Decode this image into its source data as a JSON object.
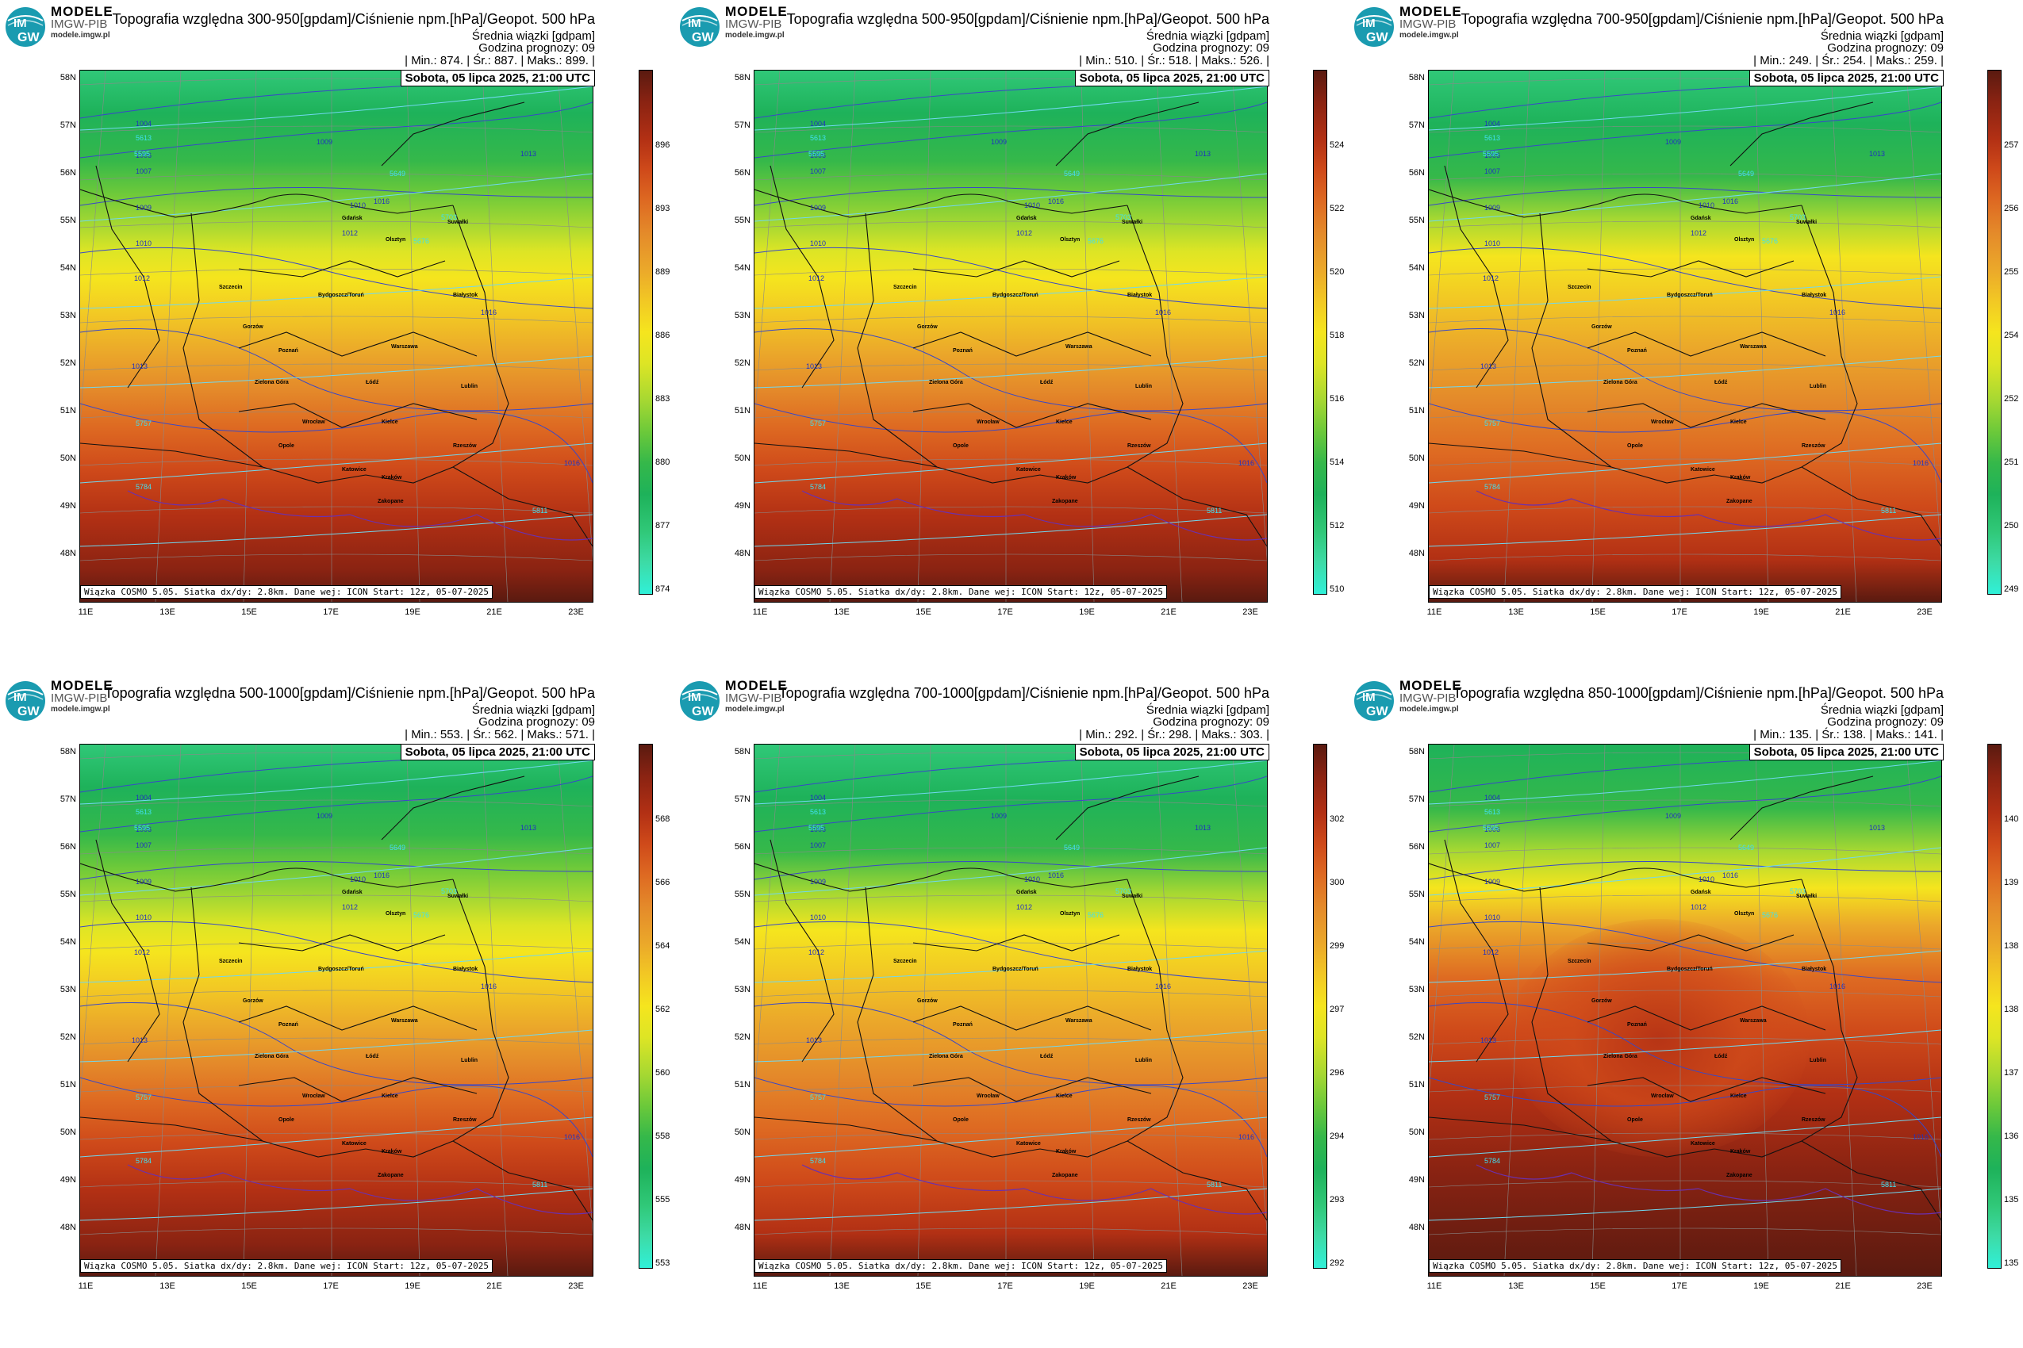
{
  "brand": {
    "line1": "MODELE",
    "line2": "IMGW-PIB",
    "line3": "modele.imgw.pl",
    "logo_text_top": "IM",
    "logo_text_bottom": "GW"
  },
  "common": {
    "subtitle": "Średnia wiązki [gdpam]",
    "forecast_hour": "Godzina prognozy: 09",
    "valid_time": "Sobota, 05 lipca 2025, 21:00 UTC",
    "credit": "Wiązka COSMO 5.05. Siatka dx/dy: 2.8km. Dane wej: ICON Start: 12z, 05-07-2025",
    "lat_labels": [
      "58N",
      "57N",
      "56N",
      "55N",
      "54N",
      "53N",
      "52N",
      "51N",
      "50N",
      "49N",
      "48N"
    ],
    "lon_labels": [
      "11E",
      "13E",
      "15E",
      "17E",
      "19E",
      "21E",
      "23E"
    ],
    "cities": [
      "Gdańsk",
      "Olsztyn",
      "Suwałki",
      "Szczecin",
      "Bydgoszcz/Toruń",
      "Białystok",
      "Gorzów",
      "Poznań",
      "Warszawa",
      "Łódź",
      "Zielona Góra",
      "Lublin",
      "Wrocław",
      "Kielce",
      "Opole",
      "Rzeszów",
      "Katowice",
      "Kraków",
      "Zakopane"
    ],
    "isobars": [
      "1004",
      "1006",
      "1007",
      "1009",
      "1010",
      "1012",
      "1013",
      "1016",
      "1009",
      "1010",
      "1012",
      "1013",
      "1016",
      "1016"
    ],
    "geopot": [
      "5595",
      "5613",
      "5649",
      "5676",
      "5703",
      "5757",
      "5784",
      "5811"
    ]
  },
  "colors": {
    "scale": [
      "#30f0d8",
      "#3ddba6",
      "#30c878",
      "#1eb25a",
      "#35b84a",
      "#6cc93a",
      "#a6d832",
      "#dde525",
      "#f5e51e",
      "#f2c824",
      "#eba82a",
      "#e48a2a",
      "#de6a22",
      "#cf4a1a",
      "#b23014",
      "#8a2312",
      "#5a1a10"
    ]
  },
  "panels": [
    {
      "title": "Topografia względna 300-950[gpdam]/Ciśnienie npm.[hPa]/Geopot. 500 hPa",
      "stats": "| Min.:   874. | Śr.:   887. | Maks.:   899. |",
      "cbar_ticks": [
        "896",
        "893",
        "889",
        "886",
        "883",
        "880",
        "877",
        "874"
      ],
      "variant": "a"
    },
    {
      "title": "Topografia względna 500-950[gpdam]/Ciśnienie npm.[hPa]/Geopot. 500 hPa",
      "stats": "| Min.:   510. | Śr.:   518. | Maks.:   526. |",
      "cbar_ticks": [
        "524",
        "522",
        "520",
        "518",
        "516",
        "514",
        "512",
        "510"
      ],
      "variant": "a"
    },
    {
      "title": "Topografia względna 700-950[gpdam]/Ciśnienie npm.[hPa]/Geopot. 500 hPa",
      "stats": "| Min.:   249. | Śr.:   254. | Maks.:   259. |",
      "cbar_ticks": [
        "257",
        "256",
        "255",
        "254",
        "252",
        "251",
        "250",
        "249"
      ],
      "variant": "b"
    },
    {
      "title": "Topografia względna 500-1000[gpdam]/Ciśnienie npm.[hPa]/Geopot. 500 hPa",
      "stats": "| Min.:   553. | Śr.:   562. | Maks.:   571. |",
      "cbar_ticks": [
        "568",
        "566",
        "564",
        "562",
        "560",
        "558",
        "555",
        "553"
      ],
      "variant": "a"
    },
    {
      "title": "Topografia względna 700-1000[gpdam]/Ciśnienie npm.[hPa]/Geopot. 500 hPa",
      "stats": "| Min.:   292. | Śr.:   298. | Maks.:   303. |",
      "cbar_ticks": [
        "302",
        "300",
        "299",
        "297",
        "296",
        "294",
        "293",
        "292"
      ],
      "variant": "b"
    },
    {
      "title": "Topografia względna 850-1000[gpdam]/Ciśnienie npm.[hPa]/Geopot. 500 hPa",
      "stats": "| Min.:   135. | Śr.:   138. | Maks.:   141. |",
      "cbar_ticks": [
        "140",
        "139",
        "138",
        "138",
        "137",
        "136",
        "135",
        "135"
      ],
      "variant": "c"
    }
  ]
}
